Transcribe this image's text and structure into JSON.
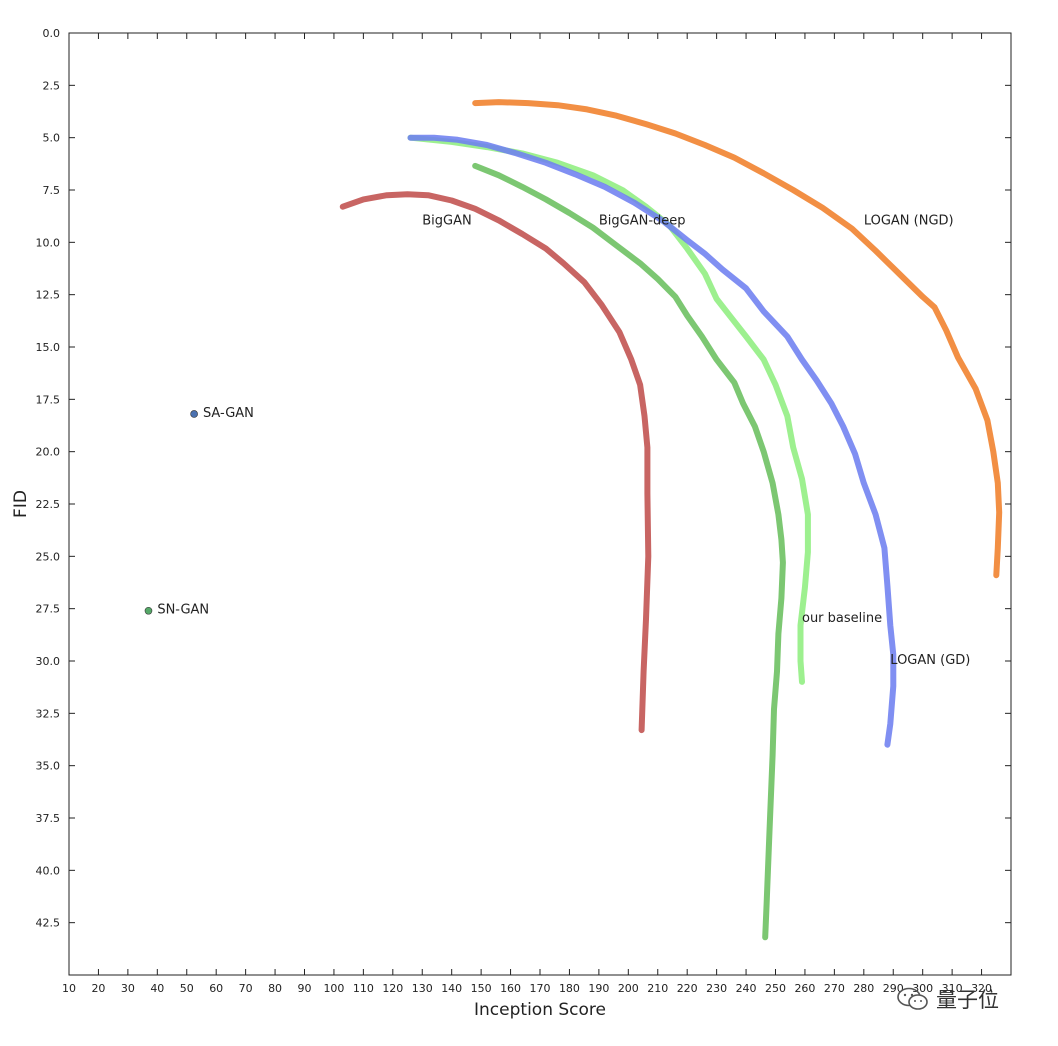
{
  "chart_data": {
    "type": "line",
    "title": "",
    "xlabel": "Inception Score",
    "ylabel": "FID",
    "xlim": [
      10,
      330
    ],
    "ylim": [
      45,
      0
    ],
    "y_inverted": true,
    "grid": false,
    "x_ticks": [
      10,
      20,
      30,
      40,
      50,
      60,
      70,
      80,
      90,
      100,
      110,
      120,
      130,
      140,
      150,
      160,
      170,
      180,
      190,
      200,
      210,
      220,
      230,
      240,
      250,
      260,
      270,
      280,
      290,
      300,
      310,
      320
    ],
    "y_ticks": [
      0.0,
      2.5,
      5.0,
      7.5,
      10.0,
      12.5,
      15.0,
      17.5,
      20.0,
      22.5,
      25.0,
      27.5,
      30.0,
      32.5,
      35.0,
      37.5,
      40.0,
      42.5
    ],
    "series": [
      {
        "name": "BigGAN",
        "color": "#c0504d",
        "points": [
          [
            103,
            8.3
          ],
          [
            110,
            7.95
          ],
          [
            118,
            7.75
          ],
          [
            125,
            7.7
          ],
          [
            132,
            7.75
          ],
          [
            140,
            8.0
          ],
          [
            148,
            8.4
          ],
          [
            156,
            8.95
          ],
          [
            164,
            9.6
          ],
          [
            172,
            10.3
          ],
          [
            178,
            11.0
          ],
          [
            185,
            11.9
          ],
          [
            191,
            13.0
          ],
          [
            197,
            14.3
          ],
          [
            201,
            15.6
          ],
          [
            204,
            16.8
          ],
          [
            205.5,
            18.3
          ],
          [
            206.5,
            19.8
          ],
          [
            206.5,
            22.0
          ],
          [
            206.8,
            25.0
          ],
          [
            206,
            28.0
          ],
          [
            205.2,
            30.5
          ],
          [
            204.5,
            33.3
          ]
        ]
      },
      {
        "name": "BigGAN-deep",
        "color": "#6abf5e",
        "points": [
          [
            148,
            6.35
          ],
          [
            156,
            6.8
          ],
          [
            164,
            7.35
          ],
          [
            172,
            7.95
          ],
          [
            180,
            8.6
          ],
          [
            188,
            9.3
          ],
          [
            196,
            10.15
          ],
          [
            204,
            11.0
          ],
          [
            210,
            11.75
          ],
          [
            216,
            12.6
          ],
          [
            220,
            13.5
          ],
          [
            225,
            14.5
          ],
          [
            230,
            15.6
          ],
          [
            236,
            16.7
          ],
          [
            239,
            17.7
          ],
          [
            243,
            18.8
          ],
          [
            246,
            20.0
          ],
          [
            249,
            21.5
          ],
          [
            251,
            23.0
          ],
          [
            252,
            24.2
          ],
          [
            252.5,
            25.3
          ],
          [
            252,
            27.0
          ],
          [
            251,
            28.7
          ],
          [
            250.5,
            30.5
          ],
          [
            249.5,
            32.3
          ],
          [
            249,
            34.5
          ],
          [
            248,
            38.0
          ],
          [
            247,
            41.5
          ],
          [
            246.5,
            43.2
          ]
        ]
      },
      {
        "name": "our baseline",
        "color": "#90ee80",
        "points": [
          [
            126,
            5.0
          ],
          [
            140,
            5.2
          ],
          [
            152,
            5.45
          ],
          [
            164,
            5.75
          ],
          [
            176,
            6.2
          ],
          [
            188,
            6.8
          ],
          [
            198,
            7.5
          ],
          [
            206,
            8.3
          ],
          [
            214,
            9.2
          ],
          [
            220,
            10.3
          ],
          [
            226,
            11.5
          ],
          [
            230,
            12.7
          ],
          [
            235,
            13.6
          ],
          [
            240,
            14.5
          ],
          [
            246,
            15.6
          ],
          [
            250,
            16.8
          ],
          [
            254,
            18.3
          ],
          [
            256,
            19.8
          ],
          [
            259,
            21.3
          ],
          [
            261,
            23.0
          ],
          [
            261,
            24.8
          ],
          [
            260,
            26.5
          ],
          [
            258.5,
            28.3
          ],
          [
            258.5,
            30.0
          ],
          [
            259,
            31.0
          ]
        ]
      },
      {
        "name": "LOGAN (GD)",
        "color": "#6e7ff0",
        "points": [
          [
            126,
            5.0
          ],
          [
            134,
            5.0
          ],
          [
            142,
            5.1
          ],
          [
            152,
            5.35
          ],
          [
            162,
            5.75
          ],
          [
            172,
            6.2
          ],
          [
            182,
            6.75
          ],
          [
            192,
            7.35
          ],
          [
            202,
            8.1
          ],
          [
            212,
            9.0
          ],
          [
            220,
            9.9
          ],
          [
            226,
            10.55
          ],
          [
            232,
            11.3
          ],
          [
            240,
            12.2
          ],
          [
            246,
            13.3
          ],
          [
            254,
            14.5
          ],
          [
            259,
            15.6
          ],
          [
            264,
            16.6
          ],
          [
            269,
            17.7
          ],
          [
            273,
            18.8
          ],
          [
            277,
            20.1
          ],
          [
            280,
            21.5
          ],
          [
            284,
            23.0
          ],
          [
            287,
            24.6
          ],
          [
            288,
            26.4
          ],
          [
            289,
            28.3
          ],
          [
            290,
            29.7
          ],
          [
            290,
            31.2
          ],
          [
            289,
            33.0
          ],
          [
            288,
            34.0
          ]
        ]
      },
      {
        "name": "LOGAN (NGD)",
        "color": "#f07f2a",
        "points": [
          [
            148,
            3.35
          ],
          [
            156,
            3.3
          ],
          [
            166,
            3.35
          ],
          [
            176,
            3.45
          ],
          [
            186,
            3.65
          ],
          [
            196,
            3.95
          ],
          [
            206,
            4.35
          ],
          [
            216,
            4.8
          ],
          [
            226,
            5.35
          ],
          [
            236,
            5.95
          ],
          [
            246,
            6.7
          ],
          [
            256,
            7.5
          ],
          [
            266,
            8.35
          ],
          [
            276,
            9.35
          ],
          [
            284,
            10.4
          ],
          [
            292,
            11.5
          ],
          [
            300,
            12.6
          ],
          [
            304,
            13.1
          ],
          [
            308,
            14.2
          ],
          [
            312,
            15.5
          ],
          [
            318,
            17.0
          ],
          [
            322,
            18.5
          ],
          [
            324,
            20.0
          ],
          [
            325.5,
            21.5
          ],
          [
            326,
            22.9
          ],
          [
            325.5,
            24.6
          ],
          [
            325,
            25.9
          ]
        ]
      }
    ],
    "points": [
      {
        "name": "SA-GAN",
        "x": 52.5,
        "y": 18.2,
        "color": "#4c72b0"
      },
      {
        "name": "SN-GAN",
        "x": 37,
        "y": 27.6,
        "color": "#55a868"
      }
    ],
    "annotations": [
      {
        "text": "BigGAN",
        "x": 130,
        "y": 8.9
      },
      {
        "text": "BigGAN-deep",
        "x": 190,
        "y": 8.9
      },
      {
        "text": "LOGAN (NGD)",
        "x": 280,
        "y": 8.9
      },
      {
        "text": "our baseline",
        "x": 259,
        "y": 27.9
      },
      {
        "text": "LOGAN (GD)",
        "x": 289,
        "y": 29.9
      },
      {
        "text": "SA-GAN",
        "x": 55.5,
        "y": 18.1
      },
      {
        "text": "SN-GAN",
        "x": 40,
        "y": 27.5
      }
    ]
  },
  "watermark": {
    "icon": "wechat-icon",
    "text": "量子位"
  }
}
